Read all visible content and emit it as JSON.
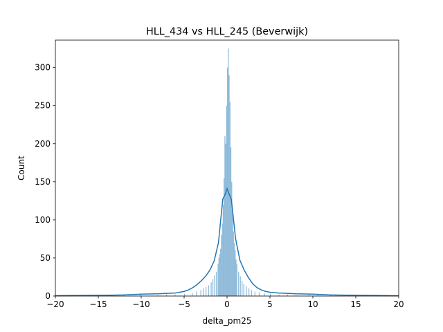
{
  "chart_data": {
    "type": "histogram",
    "title": "HLL_434 vs HLL_245 (Beverwijk)",
    "xlabel": "delta_pm25",
    "ylabel": "Count",
    "xlim": [
      -20,
      20
    ],
    "ylim": [
      0,
      336
    ],
    "xticks": [
      -20,
      -15,
      -10,
      -5,
      0,
      5,
      10,
      15,
      20
    ],
    "xtick_labels": [
      "−20",
      "−15",
      "−10",
      "−5",
      "0",
      "5",
      "10",
      "15",
      "20"
    ],
    "yticks": [
      0,
      50,
      100,
      150,
      200,
      250,
      300
    ],
    "ytick_labels": [
      "0",
      "50",
      "100",
      "150",
      "200",
      "250",
      "300"
    ],
    "grid": false,
    "colors": {
      "bars": "#1f77b4",
      "bar_opacity": 0.5,
      "kde_line": "#1f77b4"
    },
    "histogram": {
      "bin_width": 0.1,
      "bins": [
        {
          "x": -4.95,
          "count": 3
        },
        {
          "x": -4.05,
          "count": 4
        },
        {
          "x": -3.55,
          "count": 6
        },
        {
          "x": -3.05,
          "count": 8
        },
        {
          "x": -2.75,
          "count": 10
        },
        {
          "x": -2.45,
          "count": 12
        },
        {
          "x": -2.15,
          "count": 14
        },
        {
          "x": -1.85,
          "count": 18
        },
        {
          "x": -1.65,
          "count": 22
        },
        {
          "x": -1.45,
          "count": 27
        },
        {
          "x": -1.25,
          "count": 32
        },
        {
          "x": -1.05,
          "count": 42
        },
        {
          "x": -0.95,
          "count": 50
        },
        {
          "x": -0.85,
          "count": 55
        },
        {
          "x": -0.75,
          "count": 62
        },
        {
          "x": -0.65,
          "count": 80
        },
        {
          "x": -0.55,
          "count": 95
        },
        {
          "x": -0.45,
          "count": 120
        },
        {
          "x": -0.35,
          "count": 155
        },
        {
          "x": -0.25,
          "count": 210
        },
        {
          "x": -0.15,
          "count": 200
        },
        {
          "x": -0.05,
          "count": 250
        },
        {
          "x": 0.05,
          "count": 300
        },
        {
          "x": 0.15,
          "count": 325
        },
        {
          "x": 0.25,
          "count": 290
        },
        {
          "x": 0.35,
          "count": 255
        },
        {
          "x": 0.45,
          "count": 195
        },
        {
          "x": 0.55,
          "count": 150
        },
        {
          "x": 0.65,
          "count": 110
        },
        {
          "x": 0.75,
          "count": 85
        },
        {
          "x": 0.85,
          "count": 70
        },
        {
          "x": 0.95,
          "count": 60
        },
        {
          "x": 1.05,
          "count": 48
        },
        {
          "x": 1.15,
          "count": 42
        },
        {
          "x": 1.35,
          "count": 32
        },
        {
          "x": 1.55,
          "count": 26
        },
        {
          "x": 1.75,
          "count": 20
        },
        {
          "x": 1.95,
          "count": 16
        },
        {
          "x": 2.25,
          "count": 13
        },
        {
          "x": 2.55,
          "count": 10
        },
        {
          "x": 2.85,
          "count": 8
        },
        {
          "x": 3.25,
          "count": 6
        },
        {
          "x": 3.75,
          "count": 5
        },
        {
          "x": 4.35,
          "count": 4
        },
        {
          "x": 5.05,
          "count": 3
        },
        {
          "x": 6.05,
          "count": 2
        },
        {
          "x": 7.05,
          "count": 2
        },
        {
          "x": 8.05,
          "count": 1
        },
        {
          "x": 9.55,
          "count": 2
        },
        {
          "x": 10.55,
          "count": 1
        },
        {
          "x": 12.05,
          "count": 1
        },
        {
          "x": -6.05,
          "count": 2
        },
        {
          "x": -7.05,
          "count": 2
        },
        {
          "x": -8.05,
          "count": 1
        },
        {
          "x": -10.05,
          "count": 2
        },
        {
          "x": -12.05,
          "count": 1
        },
        {
          "x": -15.05,
          "count": 1
        },
        {
          "x": -18.05,
          "count": 1
        }
      ]
    },
    "kde": {
      "x": [
        -20,
        -17,
        -14,
        -12,
        -10,
        -8,
        -7,
        -6,
        -5,
        -4.5,
        -4,
        -3.5,
        -3,
        -2.5,
        -2,
        -1.5,
        -1,
        -0.5,
        -0.2,
        0,
        0.2,
        0.5,
        1,
        1.5,
        2,
        2.5,
        3,
        3.5,
        4,
        4.5,
        5,
        6,
        7,
        8,
        10,
        12,
        15,
        20
      ],
      "y": [
        0.5,
        0.8,
        1,
        1.5,
        2.5,
        3,
        3.5,
        4,
        6,
        8,
        11,
        15,
        20,
        26,
        34,
        46,
        70,
        127,
        134,
        141,
        135,
        127,
        75,
        47,
        34,
        24,
        16,
        11,
        8,
        6,
        5,
        4,
        3.5,
        3,
        2.5,
        1.5,
        1,
        0.3
      ]
    }
  }
}
